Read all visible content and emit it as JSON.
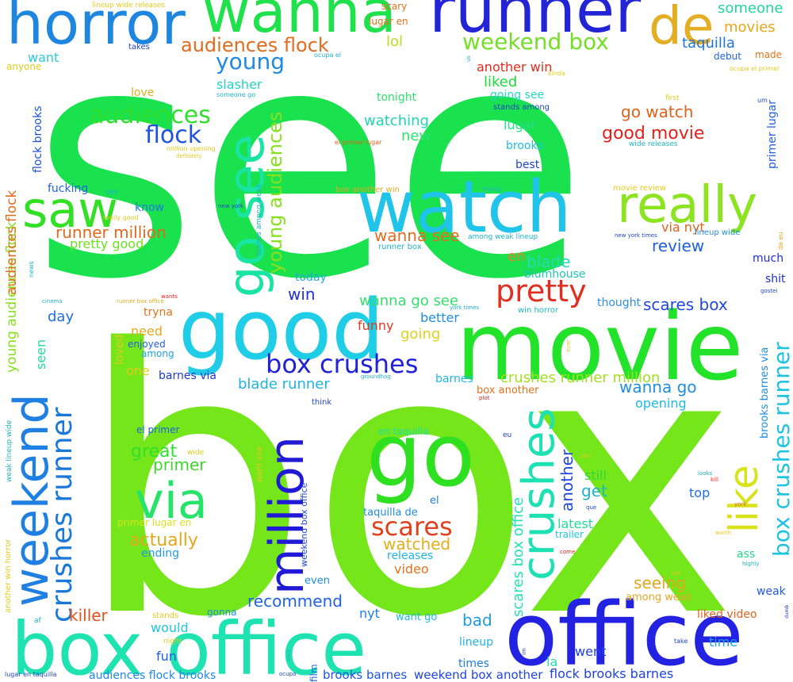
{
  "words": [
    {
      "text": "see",
      "color": "#1ae24f"
    },
    {
      "text": "box",
      "color": "#74e61a"
    },
    {
      "text": "movie",
      "color": "#22e32a"
    },
    {
      "text": "office",
      "color": "#2321e2"
    },
    {
      "text": "box office",
      "color": "#1ee3b0"
    },
    {
      "text": "watch",
      "color": "#1fc4e8"
    },
    {
      "text": "good",
      "color": "#1fcde6"
    },
    {
      "text": "go",
      "color": "#2ee01f"
    },
    {
      "text": "runner",
      "color": "#2324d6"
    },
    {
      "text": "horror",
      "color": "#1e86df"
    },
    {
      "text": "wanna",
      "color": "#1fe14b"
    },
    {
      "text": "de",
      "color": "#e3ae23"
    },
    {
      "text": "really",
      "color": "#8ce31f"
    },
    {
      "text": "saw",
      "color": "#31df24"
    },
    {
      "text": "go see",
      "color": "#19e4a2"
    },
    {
      "text": "via",
      "color": "#26e36a"
    },
    {
      "text": "million",
      "color": "#2019d5"
    },
    {
      "text": "weekend",
      "color": "#1f7fe3"
    },
    {
      "text": "crushes",
      "color": "#1de0b3"
    },
    {
      "text": "like",
      "color": "#d8e31c"
    },
    {
      "text": "pretty",
      "color": "#e12e21"
    },
    {
      "text": "box crushes",
      "color": "#2022d8"
    },
    {
      "text": "weekend box",
      "color": "#73df27"
    },
    {
      "text": "young",
      "color": "#1e8ae3"
    },
    {
      "text": "audiences",
      "color": "#2fdf2b"
    },
    {
      "text": "flock",
      "color": "#1f52dd"
    },
    {
      "text": "audiences flock",
      "color": "#e36b1e"
    },
    {
      "text": "crushes runner",
      "color": "#1c78d8"
    },
    {
      "text": "young audiences",
      "color": "#86e01d"
    },
    {
      "text": "box crushes runner",
      "color": "#1ec3e0"
    },
    {
      "text": "scares",
      "color": "#e0401c"
    },
    {
      "text": "someone",
      "color": "#20d6a0"
    },
    {
      "text": "movies",
      "color": "#e3a81d"
    },
    {
      "text": "taquilla",
      "color": "#1f74db"
    },
    {
      "text": "lol",
      "color": "#b7df21"
    },
    {
      "text": "want",
      "color": "#2cc9e0"
    },
    {
      "text": "runner million",
      "color": "#e3681e"
    },
    {
      "text": "pretty good",
      "color": "#6fe021"
    },
    {
      "text": "go watch",
      "color": "#e2621c"
    },
    {
      "text": "good movie",
      "color": "#e1221c"
    },
    {
      "text": "review",
      "color": "#1f5de3"
    },
    {
      "text": "blade",
      "color": "#26d9b8"
    },
    {
      "text": "wanna see",
      "color": "#e36d1f"
    },
    {
      "text": "scares box",
      "color": "#2047df"
    },
    {
      "text": "crushes runner million",
      "color": "#a2e01f"
    },
    {
      "text": "wanna go see",
      "color": "#33e06d"
    },
    {
      "text": "wanna go",
      "color": "#1f8de3"
    },
    {
      "text": "blade runner",
      "color": "#1fb4df"
    },
    {
      "text": "another",
      "color": "#1f47e0"
    },
    {
      "text": "great",
      "color": "#30e02e"
    },
    {
      "text": "primer",
      "color": "#3ad72a"
    },
    {
      "text": "scares box office",
      "color": "#21e3b4"
    },
    {
      "text": "watched",
      "color": "#e3ae1f"
    },
    {
      "text": "actually",
      "color": "#e3a71e"
    },
    {
      "text": "recommend",
      "color": "#1f62e3"
    },
    {
      "text": "killer",
      "color": "#e3521c"
    },
    {
      "text": "seeing",
      "color": "#e3a51f"
    },
    {
      "text": "weekend box another",
      "color": "#1f45e3"
    },
    {
      "text": "flock brooks barnes",
      "color": "#1f43e0"
    },
    {
      "text": "brooks barnes",
      "color": "#1f53e3"
    },
    {
      "text": "audiences flock brooks",
      "color": "#1f87e3"
    },
    {
      "text": "liked",
      "color": "#1edd3a"
    },
    {
      "text": "another win",
      "color": "#e02a1d"
    },
    {
      "text": "going see",
      "color": "#24d7c4"
    },
    {
      "text": "lugar",
      "color": "#25de8a"
    },
    {
      "text": "new",
      "color": "#29e36a"
    },
    {
      "text": "en",
      "color": "#e3831f"
    },
    {
      "text": "funny",
      "color": "#e3381e"
    },
    {
      "text": "better",
      "color": "#1f8ee3"
    },
    {
      "text": "going",
      "color": "#dfd11f"
    },
    {
      "text": "win",
      "color": "#1f2fe0"
    },
    {
      "text": "seen",
      "color": "#1edb9e"
    },
    {
      "text": "day",
      "color": "#1f6ee3"
    },
    {
      "text": "bad",
      "color": "#1f9be3"
    },
    {
      "text": "nyt",
      "color": "#1f7ee3"
    },
    {
      "text": "fun",
      "color": "#1f5fe3"
    },
    {
      "text": "would",
      "color": "#1fc4e0"
    },
    {
      "text": "time",
      "color": "#1fa3e3"
    },
    {
      "text": "went",
      "color": "#1f3ee3"
    },
    {
      "text": "weak",
      "color": "#1f5be3"
    },
    {
      "text": "get",
      "color": "#1fb3c4"
    },
    {
      "text": "top",
      "color": "#1f6ee3"
    },
    {
      "text": "la",
      "color": "#1fdfa8"
    },
    {
      "text": "still",
      "color": "#32d63a"
    },
    {
      "text": "latest",
      "color": "#25d99a"
    },
    {
      "text": "opening",
      "color": "#1fb8e3"
    },
    {
      "text": "video",
      "color": "#e3721c"
    },
    {
      "text": "need",
      "color": "#e3a81f"
    },
    {
      "text": "one",
      "color": "#e3cb1f"
    },
    {
      "text": "via nyt",
      "color": "#e3621c"
    },
    {
      "text": "blumhouse",
      "color": "#1fc4b3"
    },
    {
      "text": "lineup",
      "color": "#1fb3e0"
    },
    {
      "text": "ass",
      "color": "#25d98d"
    },
    {
      "text": "loved",
      "color": "#e3cb1f"
    },
    {
      "text": "tryna",
      "color": "#e3741f"
    },
    {
      "text": "barnes via",
      "color": "#1f37d8"
    },
    {
      "text": "slasher",
      "color": "#1fd6c4"
    },
    {
      "text": "love",
      "color": "#e3b01f"
    },
    {
      "text": "tonight",
      "color": "#2ee06d"
    },
    {
      "text": "watching",
      "color": "#1fd6b3"
    },
    {
      "text": "best",
      "color": "#1f45c4"
    },
    {
      "text": "brooks",
      "color": "#1fbddf"
    },
    {
      "text": "fucking",
      "color": "#1f62e3"
    },
    {
      "text": "know",
      "color": "#1f79e3"
    },
    {
      "text": "much",
      "color": "#1f2bdf"
    },
    {
      "text": "shit",
      "color": "#1f2fc4"
    },
    {
      "text": "thought",
      "color": "#2e8fe3"
    },
    {
      "text": "today",
      "color": "#1fa9e3"
    },
    {
      "text": "enjoyed",
      "color": "#1f62e3"
    },
    {
      "text": "among",
      "color": "#1fa3e3"
    },
    {
      "text": "barnes",
      "color": "#1fb8e3"
    },
    {
      "text": "primer lugar",
      "color": "#1f62e3"
    },
    {
      "text": "brooks barnes via",
      "color": "#1f8de3"
    },
    {
      "text": "weekend box office",
      "color": "#1f45e3"
    },
    {
      "text": "en taquilla",
      "color": "#1fdfa8"
    },
    {
      "text": "taquilla de",
      "color": "#1f8de3"
    },
    {
      "text": "el primer",
      "color": "#1f62e3"
    },
    {
      "text": "primer lugar en",
      "color": "#d6e31f"
    },
    {
      "text": "releases",
      "color": "#1fb8e3"
    },
    {
      "text": "ending",
      "color": "#1f9be3"
    },
    {
      "text": "trailer",
      "color": "#1fc4e0"
    },
    {
      "text": "among weak",
      "color": "#e3a81f"
    },
    {
      "text": "gonna",
      "color": "#1f8de3"
    },
    {
      "text": "even",
      "color": "#1f8de3"
    },
    {
      "text": "want go",
      "color": "#1fb8e3"
    },
    {
      "text": "liked video",
      "color": "#e3621c"
    },
    {
      "text": "times",
      "color": "#1f7ee3"
    },
    {
      "text": "film",
      "color": "#1f62e3"
    },
    {
      "text": "box another",
      "color": "#e3721c"
    },
    {
      "text": "el",
      "color": "#1f7ee3"
    },
    {
      "text": "scary",
      "color": "#e3721c"
    },
    {
      "text": "lugar en",
      "color": "#e3721c"
    },
    {
      "text": "debut",
      "color": "#1f62e3"
    },
    {
      "text": "made",
      "color": "#e3721c"
    },
    {
      "text": "anyone",
      "color": "#e3cb1f"
    },
    {
      "text": "takes",
      "color": "#1f45c4"
    },
    {
      "text": "lineup wide releases",
      "color": "#e3cb1f"
    },
    {
      "text": "ocupa el",
      "color": "#1fb3c4"
    },
    {
      "text": "us",
      "color": "#1fb3c4"
    },
    {
      "text": "kinda",
      "color": "#e3cb1f"
    },
    {
      "text": "ocupa el primer",
      "color": "#e3cb1f"
    },
    {
      "text": "someone go",
      "color": "#1fb3c4"
    },
    {
      "text": "stands among",
      "color": "#1f45c4"
    },
    {
      "text": "first",
      "color": "#e3cb1f"
    },
    {
      "text": "um",
      "color": "#1f45c4"
    },
    {
      "text": "el primer lugar",
      "color": "#e3621c"
    },
    {
      "text": "wide releases",
      "color": "#1fb3c4"
    },
    {
      "text": "million opening",
      "color": "#e3cb1f"
    },
    {
      "text": "definitely",
      "color": "#e3cb1f"
    },
    {
      "text": "box another win",
      "color": "#e3a81f"
    },
    {
      "text": "trying",
      "color": "#1fb3c4"
    },
    {
      "text": "movie review",
      "color": "#e3cb1f"
    },
    {
      "text": "ver",
      "color": "#1fb3c4"
    },
    {
      "text": "really good",
      "color": "#e3cb1f"
    },
    {
      "text": "new york",
      "color": "#1f45c4"
    },
    {
      "text": "stands among weak",
      "color": "#1fb3c4"
    },
    {
      "text": "among weak lineup",
      "color": "#1fb3c4"
    },
    {
      "text": "lineup wide",
      "color": "#1f8de3"
    },
    {
      "text": "new york times",
      "color": "#1f45c4"
    },
    {
      "text": "de eu",
      "color": "#e3a81f"
    },
    {
      "text": "gostei",
      "color": "#1f45c4"
    },
    {
      "text": "runner box",
      "color": "#1fb3c4"
    },
    {
      "text": "news",
      "color": "#1fb3c4"
    },
    {
      "text": "wants",
      "color": "#e3211c"
    },
    {
      "text": "cinema",
      "color": "#1fb3c4"
    },
    {
      "text": "runner box office",
      "color": "#e3a81f"
    },
    {
      "text": "york times",
      "color": "#1fb3c4"
    },
    {
      "text": "win horror",
      "color": "#1fb3c4"
    },
    {
      "text": "groundhog",
      "color": "#1fb3c4"
    },
    {
      "text": "plot",
      "color": "#e3211c"
    },
    {
      "text": "think",
      "color": "#1f45c4"
    },
    {
      "text": "wide",
      "color": "#e3cb1f"
    },
    {
      "text": "eu",
      "color": "#1f45c4"
    },
    {
      "text": "also",
      "color": "#e3cb1f"
    },
    {
      "text": "looks",
      "color": "#1fb3c4"
    },
    {
      "text": "kill",
      "color": "#e3211c"
    },
    {
      "text": "que",
      "color": "#1f45c4"
    },
    {
      "text": "york",
      "color": "#e3621c"
    },
    {
      "text": "worth",
      "color": "#e3cb1f"
    },
    {
      "text": "come",
      "color": "#e3211c"
    },
    {
      "text": "highly",
      "color": "#1fb3c4"
    },
    {
      "text": "last",
      "color": "#e3cb1f"
    },
    {
      "text": "dumb",
      "color": "#1f45c4"
    },
    {
      "text": "af",
      "color": "#1fb3c4"
    },
    {
      "text": "night",
      "color": "#e3cb1f"
    },
    {
      "text": "stands",
      "color": "#e3cb1f"
    },
    {
      "text": "take",
      "color": "#1f45c4"
    },
    {
      "text": "omg",
      "color": "#1fb3c4"
    },
    {
      "text": "im",
      "color": "#1f45c4"
    },
    {
      "text": "ocupa",
      "color": "#1f45c4"
    },
    {
      "text": "ever",
      "color": "#e3cb1f"
    },
    {
      "text": "lugar en taquilla",
      "color": "#1f45c4"
    },
    {
      "text": "weak lineup wide",
      "color": "#1fb3c4"
    },
    {
      "text": "another win horror",
      "color": "#e3cb1f"
    },
    {
      "text": "want see",
      "color": "#e3cb1f"
    },
    {
      "text": "weekend box office",
      "color": "#1f45e3"
    }
  ]
}
